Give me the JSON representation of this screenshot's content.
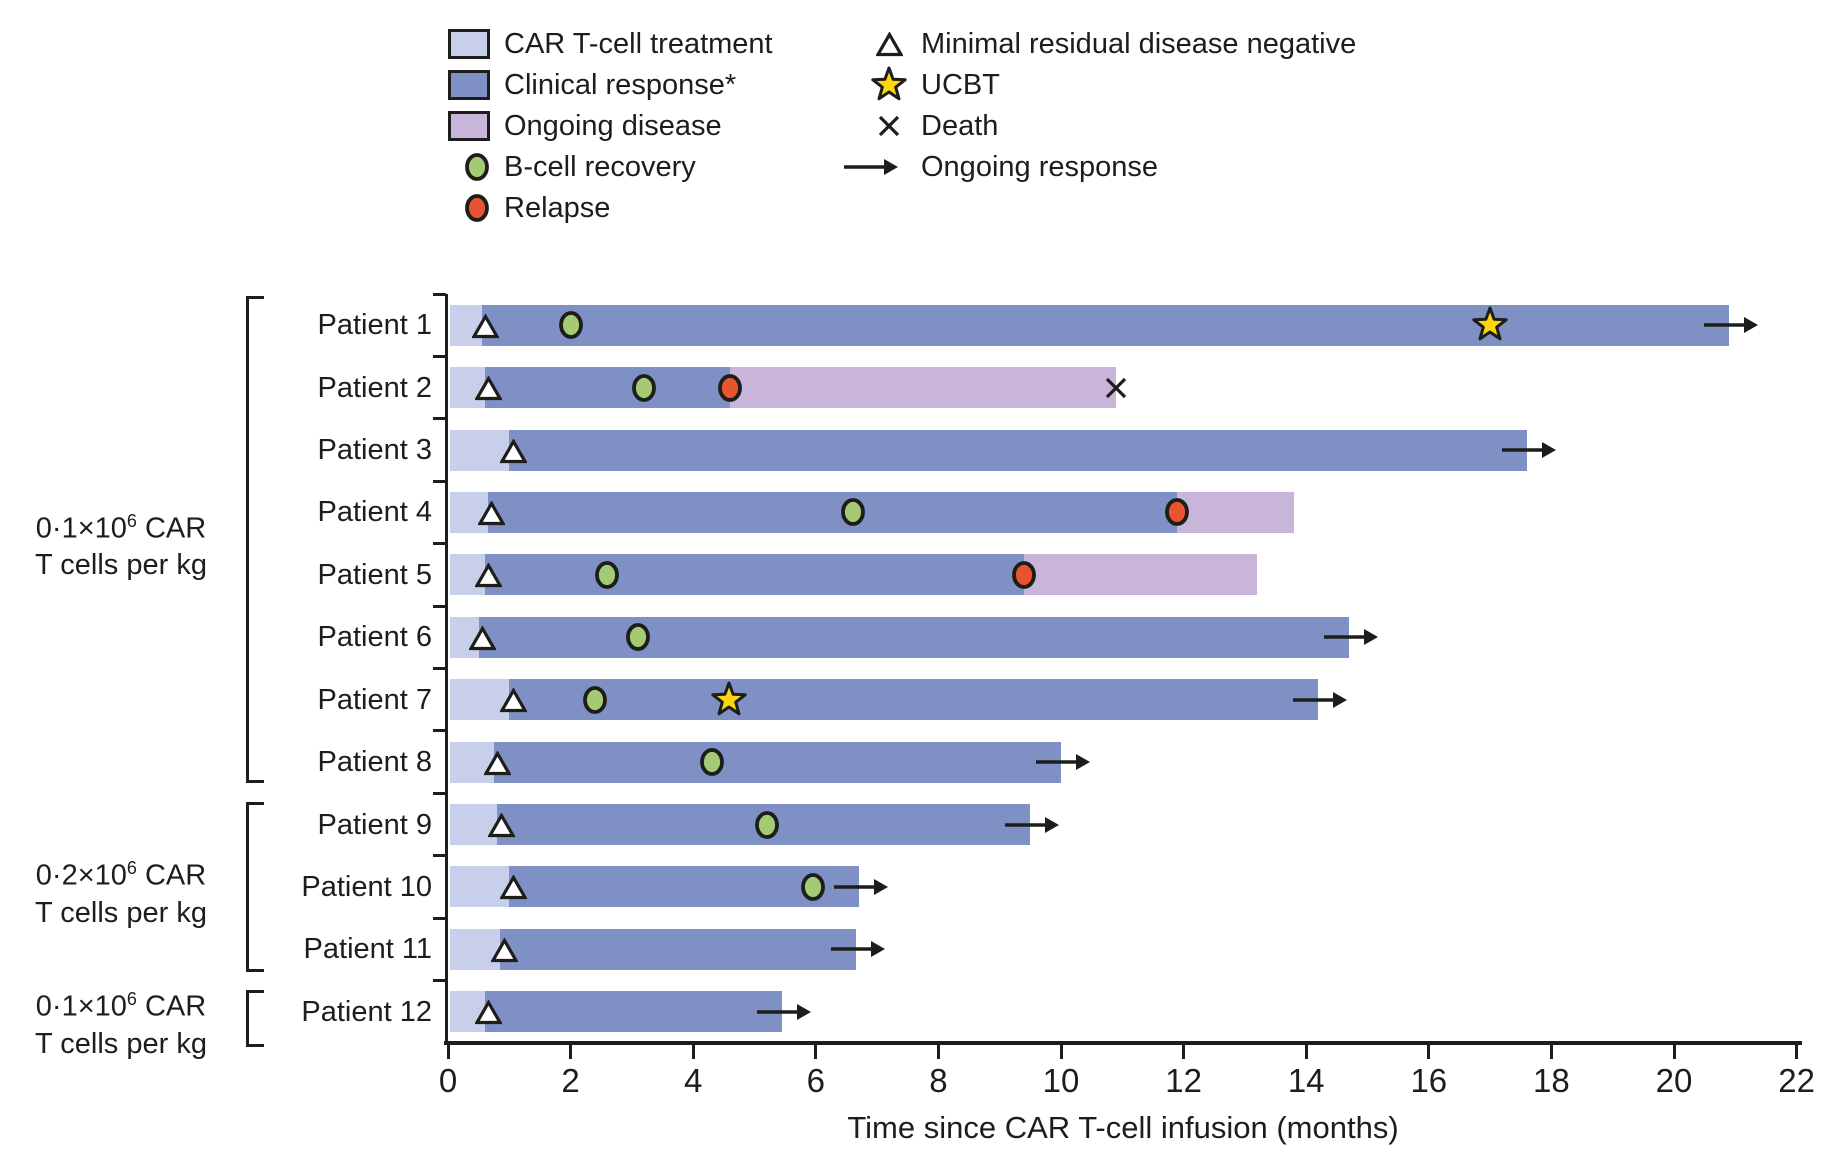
{
  "colors": {
    "ink": "#1d1d1b",
    "car_t": "#c8cfea",
    "response": "#7e90c4",
    "disease": "#c9b4da",
    "b_cell": "#a4ca74",
    "relapse": "#e8542f",
    "star": "#ffd60a",
    "marker_fill": "#ffffff"
  },
  "legend": {
    "left": [
      {
        "marker": "car-t-swatch",
        "label": "CAR T-cell treatment"
      },
      {
        "marker": "response-swatch",
        "label": "Clinical response*"
      },
      {
        "marker": "disease-swatch",
        "label": "Ongoing disease"
      },
      {
        "marker": "b-cell-circle",
        "label": "B-cell recovery"
      },
      {
        "marker": "relapse-circle",
        "label": "Relapse"
      }
    ],
    "right": [
      {
        "marker": "triangle",
        "label": "Minimal residual disease negative"
      },
      {
        "marker": "star",
        "label": "UCBT"
      },
      {
        "marker": "cross",
        "label": "Death"
      },
      {
        "marker": "arrow",
        "label": "Ongoing response"
      }
    ]
  },
  "chart_data": {
    "type": "bar",
    "subtype": "swimmer-plot",
    "xlabel": "Time since CAR T-cell infusion (months)",
    "xlim": [
      0,
      22
    ],
    "xticks": [
      0,
      2,
      4,
      6,
      8,
      10,
      12,
      14,
      16,
      18,
      20,
      22
    ],
    "units": "months",
    "grid": false,
    "groups": [
      {
        "line1_pre": "0·1×10",
        "line1_sup": "6",
        "line1_post": " CAR",
        "line2": "T cells per kg",
        "first_row": 0,
        "last_row": 7
      },
      {
        "line1_pre": "0·2×10",
        "line1_sup": "6",
        "line1_post": " CAR",
        "line2": "T cells per kg",
        "first_row": 8,
        "last_row": 10
      },
      {
        "line1_pre": "0·1×10",
        "line1_sup": "6",
        "line1_post": " CAR",
        "line2": "T cells per kg",
        "first_row": 11,
        "last_row": 11
      }
    ],
    "patients": [
      {
        "name": "Patient 1",
        "car_t_end": 0.55,
        "response_end": 20.9,
        "ongoing_response": true,
        "mrd_negative": 0.55,
        "b_cell_recovery": 2.0,
        "ucbt": 17.0
      },
      {
        "name": "Patient 2",
        "car_t_end": 0.6,
        "response_end": 4.6,
        "disease_end": 10.9,
        "death": 10.9,
        "mrd_negative": 0.6,
        "b_cell_recovery": 3.2,
        "relapse": 4.6
      },
      {
        "name": "Patient 3",
        "car_t_end": 1.0,
        "response_end": 17.6,
        "ongoing_response": true,
        "mrd_negative": 1.0
      },
      {
        "name": "Patient 4",
        "car_t_end": 0.65,
        "response_end": 11.9,
        "disease_end": 13.8,
        "mrd_negative": 0.65,
        "b_cell_recovery": 6.6,
        "relapse": 11.9
      },
      {
        "name": "Patient 5",
        "car_t_end": 0.6,
        "response_end": 9.4,
        "disease_end": 13.2,
        "mrd_negative": 0.6,
        "b_cell_recovery": 2.6,
        "relapse": 9.4
      },
      {
        "name": "Patient 6",
        "car_t_end": 0.5,
        "response_end": 14.7,
        "ongoing_response": true,
        "mrd_negative": 0.5,
        "b_cell_recovery": 3.1
      },
      {
        "name": "Patient 7",
        "car_t_end": 1.0,
        "response_end": 14.2,
        "ongoing_response": true,
        "mrd_negative": 1.0,
        "b_cell_recovery": 2.4,
        "ucbt": 4.6
      },
      {
        "name": "Patient 8",
        "car_t_end": 0.75,
        "response_end": 10.0,
        "ongoing_response": true,
        "mrd_negative": 0.75,
        "b_cell_recovery": 4.3
      },
      {
        "name": "Patient 9",
        "car_t_end": 0.8,
        "response_end": 9.5,
        "ongoing_response": true,
        "mrd_negative": 0.8,
        "b_cell_recovery": 5.2
      },
      {
        "name": "Patient 10",
        "car_t_end": 1.0,
        "response_end": 6.7,
        "ongoing_response": true,
        "mrd_negative": 1.0,
        "b_cell_recovery": 5.95
      },
      {
        "name": "Patient 11",
        "car_t_end": 0.85,
        "response_end": 6.65,
        "ongoing_response": true,
        "mrd_negative": 0.85
      },
      {
        "name": "Patient 12",
        "car_t_end": 0.6,
        "response_end": 5.45,
        "ongoing_response": true,
        "mrd_negative": 0.6
      }
    ]
  }
}
